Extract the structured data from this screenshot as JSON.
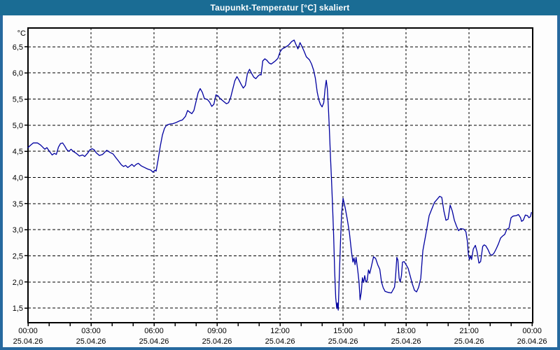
{
  "window": {
    "title": "Taupunkt-Temperatur [°C] skaliert"
  },
  "colors": {
    "titlebar_bg": "#1A6C94",
    "titlebar_text": "#FFFFFF",
    "window_border": "#27699F",
    "client_bg": "#FDFDFD",
    "plot_border": "#000000",
    "grid": "#000000",
    "series": "#0000A0",
    "label_text": "#000000"
  },
  "chart_data": {
    "type": "line",
    "title": "Taupunkt-Temperatur [°C] skaliert",
    "legend": "none",
    "grid": "dashed",
    "y_axis": {
      "unit_label": "°C",
      "range": [
        1.22,
        6.86
      ],
      "tick_step": 0.5,
      "ticks": [
        {
          "value": 6.5,
          "label": "6,5"
        },
        {
          "value": 6.0,
          "label": "6,0"
        },
        {
          "value": 5.5,
          "label": "5,5"
        },
        {
          "value": 5.0,
          "label": "5,0"
        },
        {
          "value": 4.5,
          "label": "4,5"
        },
        {
          "value": 4.0,
          "label": "4,0"
        },
        {
          "value": 3.5,
          "label": "3,5"
        },
        {
          "value": 3.0,
          "label": "3,0"
        },
        {
          "value": 2.5,
          "label": "2,5"
        },
        {
          "value": 2.0,
          "label": "2,0"
        },
        {
          "value": 1.5,
          "label": "1,5"
        }
      ]
    },
    "x_axis": {
      "range_hours": [
        0,
        24.03
      ],
      "hour_tick_interval": 1,
      "major_ticks": [
        {
          "hour": 0,
          "time": "00:00",
          "date": "25.04.26"
        },
        {
          "hour": 3,
          "time": "03:00",
          "date": "25.04.26"
        },
        {
          "hour": 6,
          "time": "06:00",
          "date": "25.04.26"
        },
        {
          "hour": 9,
          "time": "09:00",
          "date": "25.04.26"
        },
        {
          "hour": 12,
          "time": "12:00",
          "date": "25.04.26"
        },
        {
          "hour": 15,
          "time": "15:00",
          "date": "25.04.26"
        },
        {
          "hour": 18,
          "time": "18:00",
          "date": "25.04.26"
        },
        {
          "hour": 21,
          "time": "21:00",
          "date": "25.04.26"
        },
        {
          "hour": 24,
          "time": "00:00",
          "date": "26.04.26"
        }
      ]
    },
    "series": [
      {
        "name": "Taupunkt-Temperatur",
        "color": "#0000A0",
        "points_hour_degC": [
          [
            0.0,
            4.57
          ],
          [
            0.1,
            4.61
          ],
          [
            0.25,
            4.66
          ],
          [
            0.45,
            4.66
          ],
          [
            0.6,
            4.62
          ],
          [
            0.8,
            4.54
          ],
          [
            0.9,
            4.57
          ],
          [
            1.0,
            4.51
          ],
          [
            1.15,
            4.43
          ],
          [
            1.25,
            4.46
          ],
          [
            1.35,
            4.44
          ],
          [
            1.45,
            4.58
          ],
          [
            1.55,
            4.65
          ],
          [
            1.65,
            4.66
          ],
          [
            1.75,
            4.6
          ],
          [
            1.85,
            4.53
          ],
          [
            1.95,
            4.5
          ],
          [
            2.05,
            4.54
          ],
          [
            2.15,
            4.5
          ],
          [
            2.3,
            4.46
          ],
          [
            2.45,
            4.41
          ],
          [
            2.6,
            4.43
          ],
          [
            2.7,
            4.4
          ],
          [
            2.85,
            4.47
          ],
          [
            2.95,
            4.53
          ],
          [
            3.05,
            4.55
          ],
          [
            3.15,
            4.53
          ],
          [
            3.25,
            4.47
          ],
          [
            3.4,
            4.42
          ],
          [
            3.55,
            4.44
          ],
          [
            3.65,
            4.48
          ],
          [
            3.75,
            4.52
          ],
          [
            3.9,
            4.48
          ],
          [
            4.05,
            4.45
          ],
          [
            4.2,
            4.37
          ],
          [
            4.3,
            4.32
          ],
          [
            4.45,
            4.24
          ],
          [
            4.55,
            4.21
          ],
          [
            4.65,
            4.23
          ],
          [
            4.75,
            4.19
          ],
          [
            4.85,
            4.22
          ],
          [
            4.95,
            4.25
          ],
          [
            5.05,
            4.21
          ],
          [
            5.15,
            4.25
          ],
          [
            5.25,
            4.27
          ],
          [
            5.4,
            4.22
          ],
          [
            5.55,
            4.19
          ],
          [
            5.7,
            4.16
          ],
          [
            5.85,
            4.14
          ],
          [
            5.95,
            4.1
          ],
          [
            6.05,
            4.14
          ],
          [
            6.1,
            4.12
          ],
          [
            6.2,
            4.35
          ],
          [
            6.3,
            4.6
          ],
          [
            6.4,
            4.81
          ],
          [
            6.5,
            4.94
          ],
          [
            6.6,
            5.0
          ],
          [
            6.75,
            5.02
          ],
          [
            6.9,
            5.03
          ],
          [
            7.05,
            5.05
          ],
          [
            7.2,
            5.08
          ],
          [
            7.35,
            5.1
          ],
          [
            7.5,
            5.17
          ],
          [
            7.6,
            5.28
          ],
          [
            7.7,
            5.25
          ],
          [
            7.8,
            5.22
          ],
          [
            7.9,
            5.28
          ],
          [
            8.0,
            5.45
          ],
          [
            8.1,
            5.62
          ],
          [
            8.2,
            5.7
          ],
          [
            8.3,
            5.63
          ],
          [
            8.4,
            5.51
          ],
          [
            8.55,
            5.49
          ],
          [
            8.65,
            5.44
          ],
          [
            8.75,
            5.36
          ],
          [
            8.85,
            5.4
          ],
          [
            8.95,
            5.58
          ],
          [
            9.05,
            5.56
          ],
          [
            9.15,
            5.51
          ],
          [
            9.3,
            5.46
          ],
          [
            9.45,
            5.41
          ],
          [
            9.55,
            5.43
          ],
          [
            9.65,
            5.53
          ],
          [
            9.75,
            5.69
          ],
          [
            9.85,
            5.85
          ],
          [
            9.95,
            5.93
          ],
          [
            10.05,
            5.86
          ],
          [
            10.15,
            5.78
          ],
          [
            10.25,
            5.71
          ],
          [
            10.35,
            5.76
          ],
          [
            10.45,
            5.99
          ],
          [
            10.55,
            6.07
          ],
          [
            10.65,
            5.99
          ],
          [
            10.75,
            5.92
          ],
          [
            10.85,
            5.89
          ],
          [
            10.95,
            5.94
          ],
          [
            11.05,
            5.97
          ],
          [
            11.1,
            5.96
          ],
          [
            11.18,
            6.23
          ],
          [
            11.28,
            6.27
          ],
          [
            11.38,
            6.24
          ],
          [
            11.48,
            6.19
          ],
          [
            11.58,
            6.17
          ],
          [
            11.68,
            6.2
          ],
          [
            11.78,
            6.23
          ],
          [
            11.9,
            6.28
          ],
          [
            12.0,
            6.4
          ],
          [
            12.1,
            6.46
          ],
          [
            12.25,
            6.49
          ],
          [
            12.4,
            6.53
          ],
          [
            12.55,
            6.6
          ],
          [
            12.67,
            6.63
          ],
          [
            12.75,
            6.55
          ],
          [
            12.85,
            6.46
          ],
          [
            12.95,
            6.58
          ],
          [
            13.05,
            6.5
          ],
          [
            13.15,
            6.41
          ],
          [
            13.25,
            6.31
          ],
          [
            13.4,
            6.25
          ],
          [
            13.5,
            6.17
          ],
          [
            13.6,
            6.05
          ],
          [
            13.68,
            5.9
          ],
          [
            13.77,
            5.63
          ],
          [
            13.85,
            5.48
          ],
          [
            13.92,
            5.4
          ],
          [
            14.0,
            5.35
          ],
          [
            14.08,
            5.43
          ],
          [
            14.15,
            5.72
          ],
          [
            14.2,
            5.86
          ],
          [
            14.25,
            5.7
          ],
          [
            14.3,
            5.35
          ],
          [
            14.35,
            4.9
          ],
          [
            14.4,
            4.4
          ],
          [
            14.45,
            3.95
          ],
          [
            14.5,
            3.45
          ],
          [
            14.55,
            2.9
          ],
          [
            14.6,
            2.2
          ],
          [
            14.65,
            1.7
          ],
          [
            14.7,
            1.49
          ],
          [
            14.73,
            1.6
          ],
          [
            14.77,
            1.46
          ],
          [
            14.82,
            2.1
          ],
          [
            14.88,
            2.8
          ],
          [
            14.93,
            3.3
          ],
          [
            15.0,
            3.6
          ],
          [
            15.1,
            3.42
          ],
          [
            15.2,
            3.2
          ],
          [
            15.3,
            2.95
          ],
          [
            15.4,
            2.58
          ],
          [
            15.47,
            2.38
          ],
          [
            15.52,
            2.46
          ],
          [
            15.57,
            2.33
          ],
          [
            15.62,
            2.47
          ],
          [
            15.7,
            2.22
          ],
          [
            15.76,
            2.0
          ],
          [
            15.81,
            1.66
          ],
          [
            15.87,
            1.81
          ],
          [
            15.92,
            2.08
          ],
          [
            15.98,
            1.99
          ],
          [
            16.03,
            2.12
          ],
          [
            16.09,
            2.0
          ],
          [
            16.15,
            2.03
          ],
          [
            16.21,
            2.23
          ],
          [
            16.27,
            2.16
          ],
          [
            16.35,
            2.3
          ],
          [
            16.45,
            2.48
          ],
          [
            16.55,
            2.45
          ],
          [
            16.65,
            2.33
          ],
          [
            16.75,
            2.24
          ],
          [
            16.83,
            2.0
          ],
          [
            16.91,
            1.89
          ],
          [
            17.0,
            1.82
          ],
          [
            17.15,
            1.8
          ],
          [
            17.3,
            1.79
          ],
          [
            17.45,
            1.9
          ],
          [
            17.5,
            2.1
          ],
          [
            17.56,
            2.47
          ],
          [
            17.61,
            2.42
          ],
          [
            17.67,
            2.07
          ],
          [
            17.72,
            2.0
          ],
          [
            17.78,
            2.12
          ],
          [
            17.83,
            2.38
          ],
          [
            17.91,
            2.39
          ],
          [
            18.0,
            2.33
          ],
          [
            18.1,
            2.26
          ],
          [
            18.2,
            2.11
          ],
          [
            18.3,
            1.96
          ],
          [
            18.4,
            1.84
          ],
          [
            18.5,
            1.81
          ],
          [
            18.6,
            1.9
          ],
          [
            18.7,
            2.07
          ],
          [
            18.8,
            2.6
          ],
          [
            18.95,
            2.93
          ],
          [
            19.1,
            3.27
          ],
          [
            19.35,
            3.52
          ],
          [
            19.6,
            3.64
          ],
          [
            19.7,
            3.62
          ],
          [
            19.8,
            3.36
          ],
          [
            19.9,
            3.18
          ],
          [
            20.0,
            3.2
          ],
          [
            20.1,
            3.47
          ],
          [
            20.2,
            3.36
          ],
          [
            20.3,
            3.18
          ],
          [
            20.4,
            3.07
          ],
          [
            20.5,
            2.98
          ],
          [
            20.6,
            3.02
          ],
          [
            20.75,
            3.01
          ],
          [
            20.85,
            2.96
          ],
          [
            20.92,
            2.78
          ],
          [
            20.97,
            2.51
          ],
          [
            21.02,
            2.43
          ],
          [
            21.07,
            2.5
          ],
          [
            21.12,
            2.43
          ],
          [
            21.2,
            2.63
          ],
          [
            21.3,
            2.7
          ],
          [
            21.38,
            2.58
          ],
          [
            21.47,
            2.36
          ],
          [
            21.55,
            2.39
          ],
          [
            21.65,
            2.68
          ],
          [
            21.72,
            2.71
          ],
          [
            21.8,
            2.69
          ],
          [
            21.9,
            2.62
          ],
          [
            22.0,
            2.53
          ],
          [
            22.1,
            2.51
          ],
          [
            22.2,
            2.56
          ],
          [
            22.3,
            2.64
          ],
          [
            22.4,
            2.73
          ],
          [
            22.5,
            2.84
          ],
          [
            22.6,
            2.88
          ],
          [
            22.7,
            2.91
          ],
          [
            22.8,
            3.01
          ],
          [
            22.9,
            3.03
          ],
          [
            23.0,
            3.23
          ],
          [
            23.1,
            3.26
          ],
          [
            23.25,
            3.27
          ],
          [
            23.35,
            3.29
          ],
          [
            23.45,
            3.23
          ],
          [
            23.5,
            3.16
          ],
          [
            23.58,
            3.18
          ],
          [
            23.68,
            3.28
          ],
          [
            23.78,
            3.27
          ],
          [
            23.85,
            3.23
          ],
          [
            23.92,
            3.25
          ],
          [
            23.97,
            3.33
          ]
        ]
      }
    ]
  }
}
